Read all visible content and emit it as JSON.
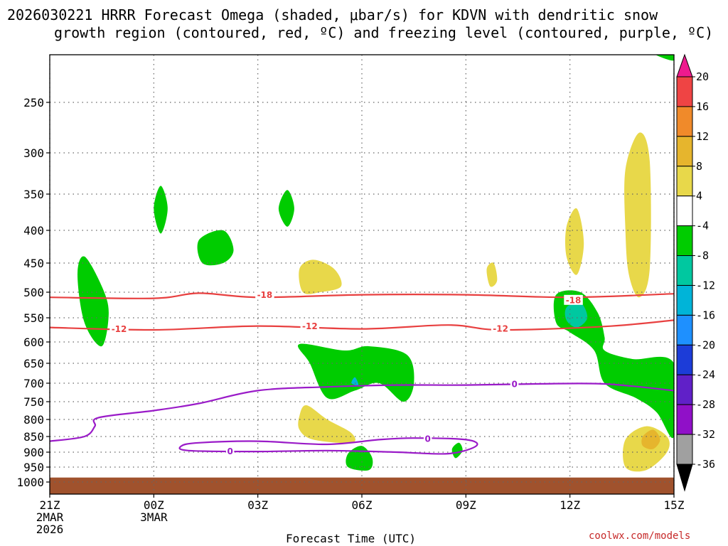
{
  "title_line1": "2026030221 HRRR Forecast Omega (shaded, μbar/s) for KDVN with dendritic snow",
  "title_line2": "growth region (contoured, red, ºC) and freezing level (contoured, purple, ºC)",
  "credit": "coolwx.com/models",
  "chart_data": {
    "type": "time-height cross section (filled contours + line contours)",
    "xlabel": "Forecast Time (UTC)",
    "ylabel": "",
    "x_ticks": [
      {
        "hour": 0,
        "label": [
          "21Z",
          "2MAR",
          "2026"
        ]
      },
      {
        "hour": 3,
        "label": [
          "00Z",
          "3MAR"
        ]
      },
      {
        "hour": 6,
        "label": [
          "03Z"
        ]
      },
      {
        "hour": 9,
        "label": [
          "06Z"
        ]
      },
      {
        "hour": 12,
        "label": [
          "09Z"
        ]
      },
      {
        "hour": 15,
        "label": [
          "12Z"
        ]
      },
      {
        "hour": 18,
        "label": [
          "15Z"
        ]
      }
    ],
    "xlim_hours": [
      0,
      18
    ],
    "y_ticks_hpa": [
      250,
      300,
      350,
      400,
      450,
      500,
      550,
      600,
      650,
      700,
      750,
      800,
      850,
      900,
      950,
      1000
    ],
    "ylim_hpa": [
      1000,
      200
    ],
    "y_scale": "pressure",
    "grid": true,
    "colorbar": {
      "labels": [
        20,
        16,
        12,
        8,
        4,
        -4,
        -8,
        -12,
        -16,
        -20,
        -24,
        -28,
        -32,
        -36
      ],
      "bins": [
        {
          "range": ">20",
          "color": "#ee1a8e"
        },
        {
          "range": "16 to 20",
          "color": "#ef4444"
        },
        {
          "range": "12 to 16",
          "color": "#f08a2a"
        },
        {
          "range": "8 to 12",
          "color": "#e6b52d"
        },
        {
          "range": "4 to 8",
          "color": "#e8d84a"
        },
        {
          "range": "-4 to 4",
          "color": "#ffffff"
        },
        {
          "range": "-8 to -4",
          "color": "#00cc00"
        },
        {
          "range": "-12 to -8",
          "color": "#00c8a0"
        },
        {
          "range": "-16 to -12",
          "color": "#00b4d8"
        },
        {
          "range": "-20 to -16",
          "color": "#1e90ff"
        },
        {
          "range": "-24 to -20",
          "color": "#1c3cd8"
        },
        {
          "range": "-28 to -24",
          "color": "#6020c8"
        },
        {
          "range": "-32 to -28",
          "color": "#9010c8"
        },
        {
          "range": "-36 to -32",
          "color": "#a0a0a0"
        },
        {
          "range": "<-36",
          "color": "#000000"
        }
      ]
    },
    "omega_regions": [
      {
        "level": "-4 to -8",
        "color": "#00cc00",
        "points": [
          [
            0.8,
            470
          ],
          [
            1.0,
            560
          ],
          [
            1.5,
            610
          ],
          [
            1.7,
            540
          ],
          [
            1.5,
            490
          ],
          [
            1.0,
            440
          ]
        ]
      },
      {
        "level": "-4 to -8",
        "color": "#00cc00",
        "points": [
          [
            3.0,
            370
          ],
          [
            3.2,
            340
          ],
          [
            3.4,
            370
          ],
          [
            3.2,
            405
          ]
        ]
      },
      {
        "level": "-4 to -8",
        "color": "#00cc00",
        "points": [
          [
            4.3,
            415
          ],
          [
            5.0,
            400
          ],
          [
            5.3,
            430
          ],
          [
            5.0,
            450
          ],
          [
            4.4,
            450
          ]
        ]
      },
      {
        "level": "-4 to -8",
        "color": "#00cc00",
        "points": [
          [
            6.6,
            370
          ],
          [
            6.85,
            345
          ],
          [
            7.05,
            370
          ],
          [
            6.85,
            395
          ]
        ]
      },
      {
        "level": "-4 to -8",
        "color": "#00cc00",
        "points": [
          [
            7.2,
            605
          ],
          [
            8.5,
            620
          ],
          [
            9.2,
            610
          ],
          [
            10.3,
            630
          ],
          [
            10.5,
            700
          ],
          [
            10.2,
            750
          ],
          [
            9.5,
            700
          ],
          [
            8.8,
            720
          ],
          [
            8.0,
            740
          ],
          [
            7.5,
            650
          ]
        ]
      },
      {
        "level": "-4 to -8",
        "color": "#00cc00",
        "points": [
          [
            8.6,
            905
          ],
          [
            9.0,
            880
          ],
          [
            9.3,
            920
          ],
          [
            9.2,
            960
          ],
          [
            8.6,
            950
          ]
        ]
      },
      {
        "level": "-4 to -8",
        "color": "#00cc00",
        "points": [
          [
            11.6,
            890
          ],
          [
            11.8,
            870
          ],
          [
            11.9,
            895
          ],
          [
            11.7,
            920
          ]
        ]
      },
      {
        "level": "-4 to -8",
        "color": "#00cc00",
        "points": [
          [
            14.6,
            505
          ],
          [
            15.3,
            500
          ],
          [
            15.8,
            540
          ],
          [
            16.0,
            590
          ],
          [
            16.0,
            620
          ],
          [
            16.8,
            640
          ],
          [
            18.0,
            650
          ],
          [
            18.0,
            850
          ],
          [
            17.5,
            780
          ],
          [
            16.9,
            740
          ],
          [
            16.0,
            700
          ],
          [
            15.7,
            620
          ],
          [
            15.0,
            580
          ],
          [
            14.6,
            560
          ]
        ]
      },
      {
        "level": "-4 to -8",
        "color": "#00cc00",
        "points": [
          [
            17.2,
            205
          ],
          [
            18.0,
            200
          ],
          [
            18.0,
            215
          ]
        ]
      },
      {
        "level": "-8 to -12",
        "color": "#00c8a0",
        "points": [
          [
            14.9,
            530
          ],
          [
            15.3,
            520
          ],
          [
            15.5,
            550
          ],
          [
            15.2,
            570
          ],
          [
            14.9,
            555
          ]
        ]
      },
      {
        "level": "-12 to -16",
        "color": "#00b4d8",
        "points": [
          [
            8.7,
            700
          ],
          [
            8.8,
            685
          ],
          [
            8.9,
            705
          ]
        ]
      },
      {
        "level": "4 to 8",
        "color": "#e8d84a",
        "points": [
          [
            7.2,
            460
          ],
          [
            7.6,
            445
          ],
          [
            8.2,
            460
          ],
          [
            8.4,
            490
          ],
          [
            7.8,
            500
          ],
          [
            7.3,
            500
          ]
        ]
      },
      {
        "level": "4 to 8",
        "color": "#e8d84a",
        "points": [
          [
            7.2,
            790
          ],
          [
            7.4,
            760
          ],
          [
            8.0,
            800
          ],
          [
            8.7,
            840
          ],
          [
            8.7,
            870
          ],
          [
            7.6,
            860
          ],
          [
            7.2,
            830
          ]
        ]
      },
      {
        "level": "4 to 8",
        "color": "#e8d84a",
        "points": [
          [
            12.6,
            460
          ],
          [
            12.8,
            450
          ],
          [
            12.9,
            480
          ],
          [
            12.7,
            490
          ]
        ]
      },
      {
        "level": "4 to 8",
        "color": "#e8d84a",
        "points": [
          [
            14.9,
            395
          ],
          [
            15.2,
            370
          ],
          [
            15.4,
            420
          ],
          [
            15.2,
            470
          ],
          [
            14.9,
            440
          ]
        ]
      },
      {
        "level": "4 to 8",
        "color": "#e8d84a",
        "points": [
          [
            16.6,
            320
          ],
          [
            17.0,
            280
          ],
          [
            17.3,
            310
          ],
          [
            17.3,
            460
          ],
          [
            17.0,
            510
          ],
          [
            16.7,
            470
          ],
          [
            16.6,
            400
          ]
        ]
      },
      {
        "level": "4 to 8",
        "color": "#e8d84a",
        "points": [
          [
            16.6,
            860
          ],
          [
            17.2,
            820
          ],
          [
            17.8,
            850
          ],
          [
            17.8,
            900
          ],
          [
            17.2,
            960
          ],
          [
            16.6,
            950
          ]
        ]
      },
      {
        "level": "8 to 12",
        "color": "#e6b52d",
        "points": [
          [
            17.1,
            850
          ],
          [
            17.4,
            830
          ],
          [
            17.6,
            860
          ],
          [
            17.4,
            890
          ],
          [
            17.1,
            880
          ]
        ]
      }
    ],
    "red_isotherms_C": [
      {
        "value": -18,
        "points": [
          [
            0,
            510
          ],
          [
            3.0,
            512
          ],
          [
            4.3,
            502
          ],
          [
            6.0,
            510
          ],
          [
            9.0,
            505
          ],
          [
            12.0,
            505
          ],
          [
            15.0,
            510
          ],
          [
            18.0,
            503
          ]
        ]
      },
      {
        "value": -12,
        "points": [
          [
            0,
            570
          ],
          [
            3.0,
            575
          ],
          [
            6.0,
            567
          ],
          [
            9.0,
            573
          ],
          [
            11.5,
            565
          ],
          [
            13.0,
            575
          ],
          [
            16.0,
            568
          ],
          [
            18.0,
            555
          ]
        ]
      }
    ],
    "red_labels": [
      {
        "value": -18,
        "hour": 6.2,
        "hpa": 505
      },
      {
        "value": -12,
        "hour": 2.0,
        "hpa": 573
      },
      {
        "value": -12,
        "hour": 7.5,
        "hpa": 567
      },
      {
        "value": -12,
        "hour": 13.0,
        "hpa": 572
      },
      {
        "value": -18,
        "hour": 15.1,
        "hpa": 515
      }
    ],
    "purple_isotherms_C": [
      {
        "value": 0,
        "points": [
          [
            0,
            865
          ],
          [
            1.0,
            850
          ],
          [
            1.3,
            820
          ],
          [
            1.4,
            795
          ],
          [
            3.0,
            775
          ],
          [
            4.3,
            755
          ],
          [
            6.0,
            720
          ],
          [
            8.0,
            710
          ],
          [
            10.0,
            705
          ],
          [
            12.0,
            705
          ],
          [
            14.0,
            702
          ],
          [
            16.0,
            702
          ],
          [
            18.0,
            720
          ]
        ]
      },
      {
        "value": 0,
        "closed": true,
        "points": [
          [
            3.8,
            880
          ],
          [
            4.3,
            870
          ],
          [
            6.0,
            865
          ],
          [
            8.0,
            875
          ],
          [
            9.5,
            860
          ],
          [
            10.5,
            855
          ],
          [
            12.0,
            860
          ],
          [
            12.3,
            880
          ],
          [
            11.5,
            905
          ],
          [
            10.0,
            900
          ],
          [
            8.0,
            895
          ],
          [
            6.0,
            898
          ],
          [
            4.0,
            895
          ]
        ]
      }
    ],
    "purple_labels": [
      {
        "value": 0,
        "hour": 5.2,
        "hpa": 897
      },
      {
        "value": 0,
        "hour": 10.9,
        "hpa": 857
      },
      {
        "value": 0,
        "hour": 13.4,
        "hpa": 702
      }
    ],
    "terrain_top_hpa": 985
  }
}
